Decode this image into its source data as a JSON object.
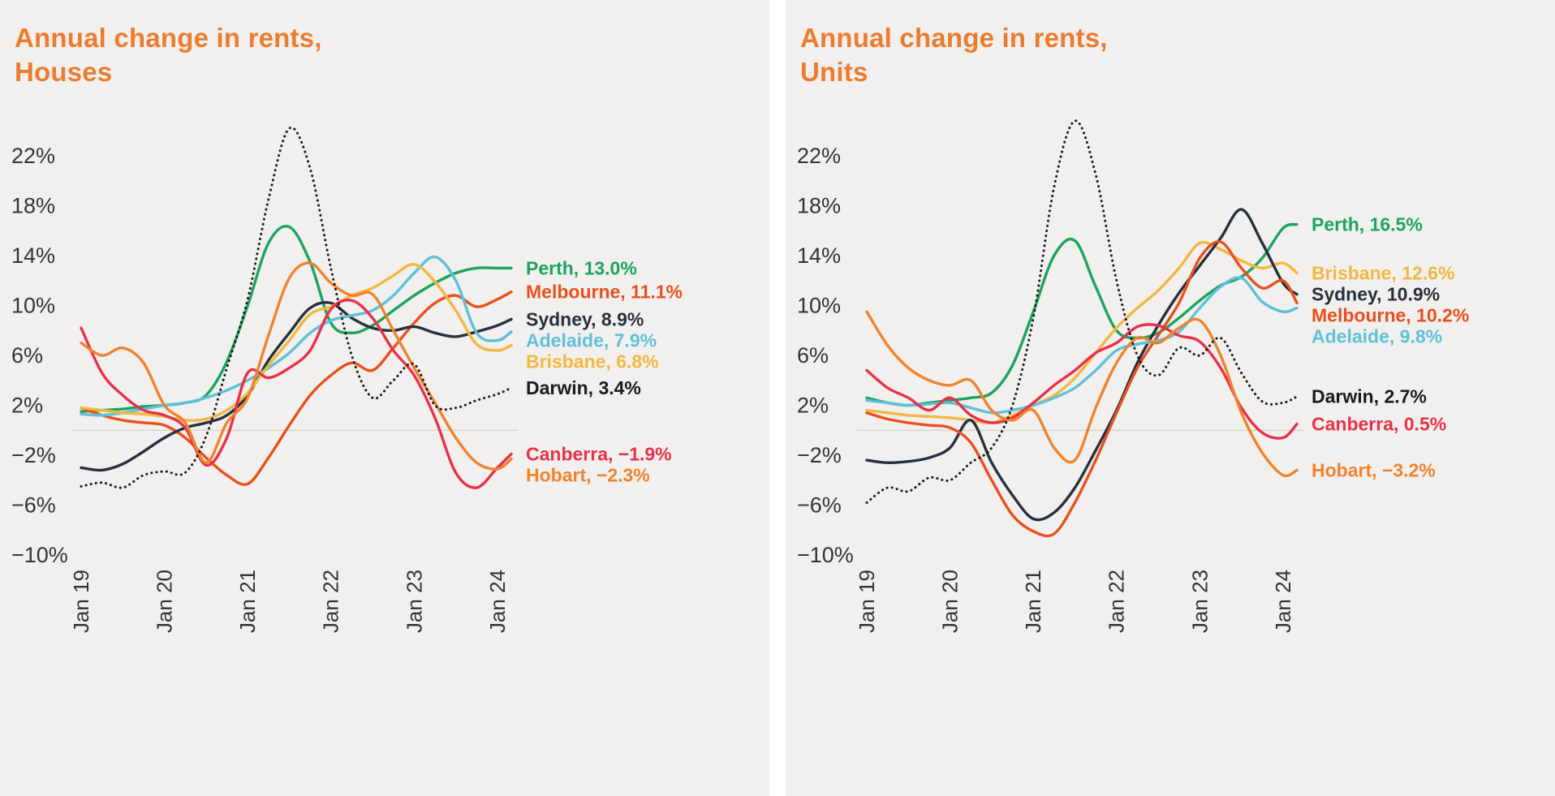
{
  "page": {
    "background_color": "#ffffff",
    "card_background_color": "#f1f0ee",
    "axis_text_color": "#33323d",
    "zero_line_color": "#d9d6d2"
  },
  "chart_data": [
    {
      "type": "line",
      "title": "Annual change in rents, Houses",
      "title_lines": [
        "Annual change in rents,",
        "Houses"
      ],
      "title_color": "#ED7C2F",
      "grid": false,
      "legend_position": "right-end-labels",
      "ylim": [
        -11.5,
        26
      ],
      "x_months_from_jan_2019": [
        0,
        3,
        6,
        9,
        12,
        15,
        18,
        21,
        24,
        27,
        30,
        33,
        36,
        39,
        42,
        45,
        48,
        51,
        54,
        57,
        60,
        62
      ],
      "x_ticks": [
        {
          "label": "Jan 19",
          "month": 0
        },
        {
          "label": "Jan 20",
          "month": 12
        },
        {
          "label": "Jan 21",
          "month": 24
        },
        {
          "label": "Jan 22",
          "month": 36
        },
        {
          "label": "Jan 23",
          "month": 48
        },
        {
          "label": "Jan 24",
          "month": 60
        }
      ],
      "y_ticks": [
        {
          "label": "22%",
          "value": 22
        },
        {
          "label": "18%",
          "value": 18
        },
        {
          "label": "14%",
          "value": 14
        },
        {
          "label": "10%",
          "value": 10
        },
        {
          "label": "6%",
          "value": 6
        },
        {
          "label": "2%",
          "value": 2
        },
        {
          "label": "−2%",
          "value": -2
        },
        {
          "label": "−6%",
          "value": -6
        },
        {
          "label": "−10%",
          "value": -10
        }
      ],
      "series": [
        {
          "name": "Perth",
          "color": "#1CA45C",
          "dashed": false,
          "label": "Perth, 13.0%",
          "end_value": 13.0,
          "values": [
            1.5,
            1.6,
            1.7,
            1.9,
            2.0,
            2.2,
            2.8,
            5.5,
            10.0,
            15.0,
            16.3,
            13.5,
            8.6,
            7.8,
            8.4,
            9.6,
            10.8,
            11.8,
            12.6,
            13.0,
            13.0,
            13.0
          ]
        },
        {
          "name": "Melbourne",
          "color": "#E8511E",
          "dashed": false,
          "label": "Melbourne, 11.1%",
          "end_value": 11.1,
          "values": [
            1.8,
            1.2,
            0.8,
            0.6,
            0.4,
            -0.6,
            -2.2,
            -3.6,
            -4.3,
            -2.2,
            0.4,
            2.8,
            4.4,
            5.4,
            4.8,
            6.6,
            8.6,
            10.2,
            10.8,
            9.9,
            10.5,
            11.1
          ]
        },
        {
          "name": "Sydney",
          "color": "#27303E",
          "dashed": false,
          "label": "Sydney, 8.9%",
          "end_value": 8.9,
          "values": [
            -3.0,
            -3.2,
            -2.7,
            -1.7,
            -0.6,
            0.2,
            0.6,
            1.2,
            2.8,
            5.6,
            7.8,
            9.8,
            10.2,
            9.0,
            8.2,
            8.0,
            8.3,
            7.8,
            7.5,
            7.9,
            8.4,
            8.9
          ]
        },
        {
          "name": "Adelaide",
          "color": "#5FC0D8",
          "dashed": false,
          "label": "Adelaide, 7.9%",
          "end_value": 7.9,
          "values": [
            1.3,
            1.2,
            1.4,
            1.7,
            2.0,
            2.2,
            2.6,
            3.2,
            4.0,
            5.0,
            6.2,
            7.8,
            8.8,
            9.2,
            9.6,
            10.8,
            12.6,
            13.9,
            12.0,
            7.8,
            7.2,
            7.9
          ]
        },
        {
          "name": "Brisbane",
          "color": "#F2B840",
          "dashed": false,
          "label": "Brisbane, 6.8%",
          "end_value": 6.8,
          "values": [
            1.8,
            1.6,
            1.4,
            1.3,
            1.1,
            0.8,
            0.9,
            1.6,
            3.0,
            5.2,
            7.2,
            9.3,
            9.9,
            10.8,
            11.4,
            12.4,
            13.3,
            11.9,
            9.6,
            6.9,
            6.4,
            6.8
          ]
        },
        {
          "name": "Darwin",
          "color": "#1A1A1A",
          "dashed": true,
          "label": "Darwin, 3.4%",
          "end_value": 3.4,
          "values": [
            -4.5,
            -4.2,
            -4.6,
            -3.6,
            -3.3,
            -3.4,
            -0.5,
            5.0,
            10.5,
            18.5,
            24.2,
            21.0,
            13.0,
            6.0,
            2.6,
            4.0,
            5.3,
            2.0,
            1.8,
            2.4,
            2.9,
            3.4
          ]
        },
        {
          "name": "Canberra",
          "color": "#E73249",
          "dashed": false,
          "label": "Canberra, −1.9%",
          "end_value": -1.9,
          "values": [
            8.2,
            4.6,
            2.8,
            1.6,
            1.2,
            0.2,
            -2.8,
            -0.6,
            4.6,
            4.2,
            5.0,
            6.4,
            9.7,
            10.4,
            9.0,
            6.4,
            4.4,
            1.0,
            -3.4,
            -4.6,
            -3.0,
            -1.9
          ]
        },
        {
          "name": "Hobart",
          "color": "#F0832E",
          "dashed": false,
          "label": "Hobart, −2.3%",
          "end_value": -2.3,
          "values": [
            7.0,
            6.0,
            6.6,
            5.4,
            2.0,
            0.6,
            -2.6,
            0.6,
            2.6,
            7.6,
            12.2,
            13.4,
            11.8,
            10.8,
            10.9,
            8.0,
            5.0,
            2.2,
            -0.6,
            -2.6,
            -3.1,
            -2.3
          ]
        }
      ]
    },
    {
      "type": "line",
      "title": "Annual change in rents, Units",
      "title_lines": [
        "Annual change in rents,",
        "Units"
      ],
      "title_color": "#ED7C2F",
      "grid": false,
      "legend_position": "right-end-labels",
      "ylim": [
        -11.5,
        26
      ],
      "x_months_from_jan_2019": [
        0,
        3,
        6,
        9,
        12,
        15,
        18,
        21,
        24,
        27,
        30,
        33,
        36,
        39,
        42,
        45,
        48,
        51,
        54,
        57,
        60,
        62
      ],
      "x_ticks": [
        {
          "label": "Jan 19",
          "month": 0
        },
        {
          "label": "Jan 20",
          "month": 12
        },
        {
          "label": "Jan 21",
          "month": 24
        },
        {
          "label": "Jan 22",
          "month": 36
        },
        {
          "label": "Jan 23",
          "month": 48
        },
        {
          "label": "Jan 24",
          "month": 60
        }
      ],
      "y_ticks": [
        {
          "label": "22%",
          "value": 22
        },
        {
          "label": "18%",
          "value": 18
        },
        {
          "label": "14%",
          "value": 14
        },
        {
          "label": "10%",
          "value": 10
        },
        {
          "label": "6%",
          "value": 6
        },
        {
          "label": "2%",
          "value": 2
        },
        {
          "label": "−2%",
          "value": -2
        },
        {
          "label": "−6%",
          "value": -6
        },
        {
          "label": "−10%",
          "value": -10
        }
      ],
      "series": [
        {
          "name": "Perth",
          "color": "#1CA45C",
          "dashed": false,
          "label": "Perth, 16.5%",
          "end_value": 16.5,
          "values": [
            2.6,
            2.2,
            2.0,
            2.2,
            2.4,
            2.6,
            3.0,
            5.2,
            9.5,
            14.0,
            15.2,
            11.5,
            8.0,
            7.4,
            7.8,
            9.0,
            10.4,
            11.6,
            12.3,
            13.8,
            16.2,
            16.5
          ]
        },
        {
          "name": "Brisbane",
          "color": "#F2B840",
          "dashed": false,
          "label": "Brisbane, 12.6%",
          "end_value": 12.6,
          "values": [
            1.6,
            1.4,
            1.2,
            1.1,
            1.0,
            0.8,
            0.6,
            1.2,
            2.0,
            2.8,
            4.2,
            6.2,
            8.2,
            9.8,
            11.2,
            13.0,
            15.0,
            14.5,
            13.6,
            13.0,
            13.4,
            12.6
          ]
        },
        {
          "name": "Sydney",
          "color": "#27303E",
          "dashed": false,
          "label": "Sydney, 10.9%",
          "end_value": 10.9,
          "values": [
            -2.4,
            -2.6,
            -2.5,
            -2.2,
            -1.4,
            0.8,
            -2.6,
            -5.2,
            -7.1,
            -6.6,
            -4.6,
            -1.6,
            1.6,
            5.4,
            8.4,
            11.0,
            13.2,
            15.4,
            17.7,
            15.0,
            11.8,
            10.9
          ]
        },
        {
          "name": "Melbourne",
          "color": "#E8511E",
          "dashed": false,
          "label": "Melbourne, 10.2%",
          "end_value": 10.2,
          "values": [
            1.4,
            0.9,
            0.6,
            0.4,
            0.2,
            -1.0,
            -4.0,
            -6.8,
            -8.1,
            -8.3,
            -5.8,
            -2.4,
            1.4,
            5.0,
            7.6,
            10.2,
            13.8,
            15.1,
            13.0,
            11.4,
            12.0,
            10.2
          ]
        },
        {
          "name": "Adelaide",
          "color": "#5FC0D8",
          "dashed": false,
          "label": "Adelaide, 9.8%",
          "end_value": 9.8,
          "values": [
            2.4,
            2.2,
            2.0,
            2.1,
            2.2,
            1.8,
            1.4,
            1.6,
            2.0,
            2.6,
            3.4,
            4.8,
            6.4,
            6.9,
            7.2,
            7.9,
            9.8,
            11.5,
            12.2,
            10.3,
            9.5,
            9.8
          ]
        },
        {
          "name": "Darwin",
          "color": "#1A1A1A",
          "dashed": true,
          "label": "Darwin, 2.7%",
          "end_value": 2.7,
          "values": [
            -5.8,
            -4.6,
            -4.9,
            -3.8,
            -4.0,
            -2.6,
            -1.4,
            2.0,
            9.0,
            19.5,
            24.8,
            20.5,
            12.0,
            6.0,
            4.4,
            6.6,
            6.0,
            7.4,
            4.6,
            2.3,
            2.2,
            2.7
          ]
        },
        {
          "name": "Canberra",
          "color": "#E73249",
          "dashed": false,
          "label": "Canberra, 0.5%",
          "end_value": 0.5,
          "values": [
            4.8,
            3.4,
            2.6,
            1.6,
            2.6,
            1.2,
            0.6,
            1.0,
            2.2,
            3.6,
            4.8,
            6.2,
            7.0,
            8.3,
            8.4,
            7.6,
            7.1,
            5.0,
            1.8,
            -0.2,
            -0.6,
            0.5
          ]
        },
        {
          "name": "Hobart",
          "color": "#F0832E",
          "dashed": false,
          "label": "Hobart, −3.2%",
          "end_value": -3.2,
          "values": [
            9.5,
            6.8,
            5.0,
            4.0,
            3.6,
            4.0,
            1.6,
            0.8,
            1.6,
            -1.4,
            -2.4,
            1.8,
            5.4,
            7.4,
            7.0,
            8.2,
            8.8,
            6.0,
            1.4,
            -1.8,
            -3.6,
            -3.2
          ]
        }
      ]
    }
  ]
}
